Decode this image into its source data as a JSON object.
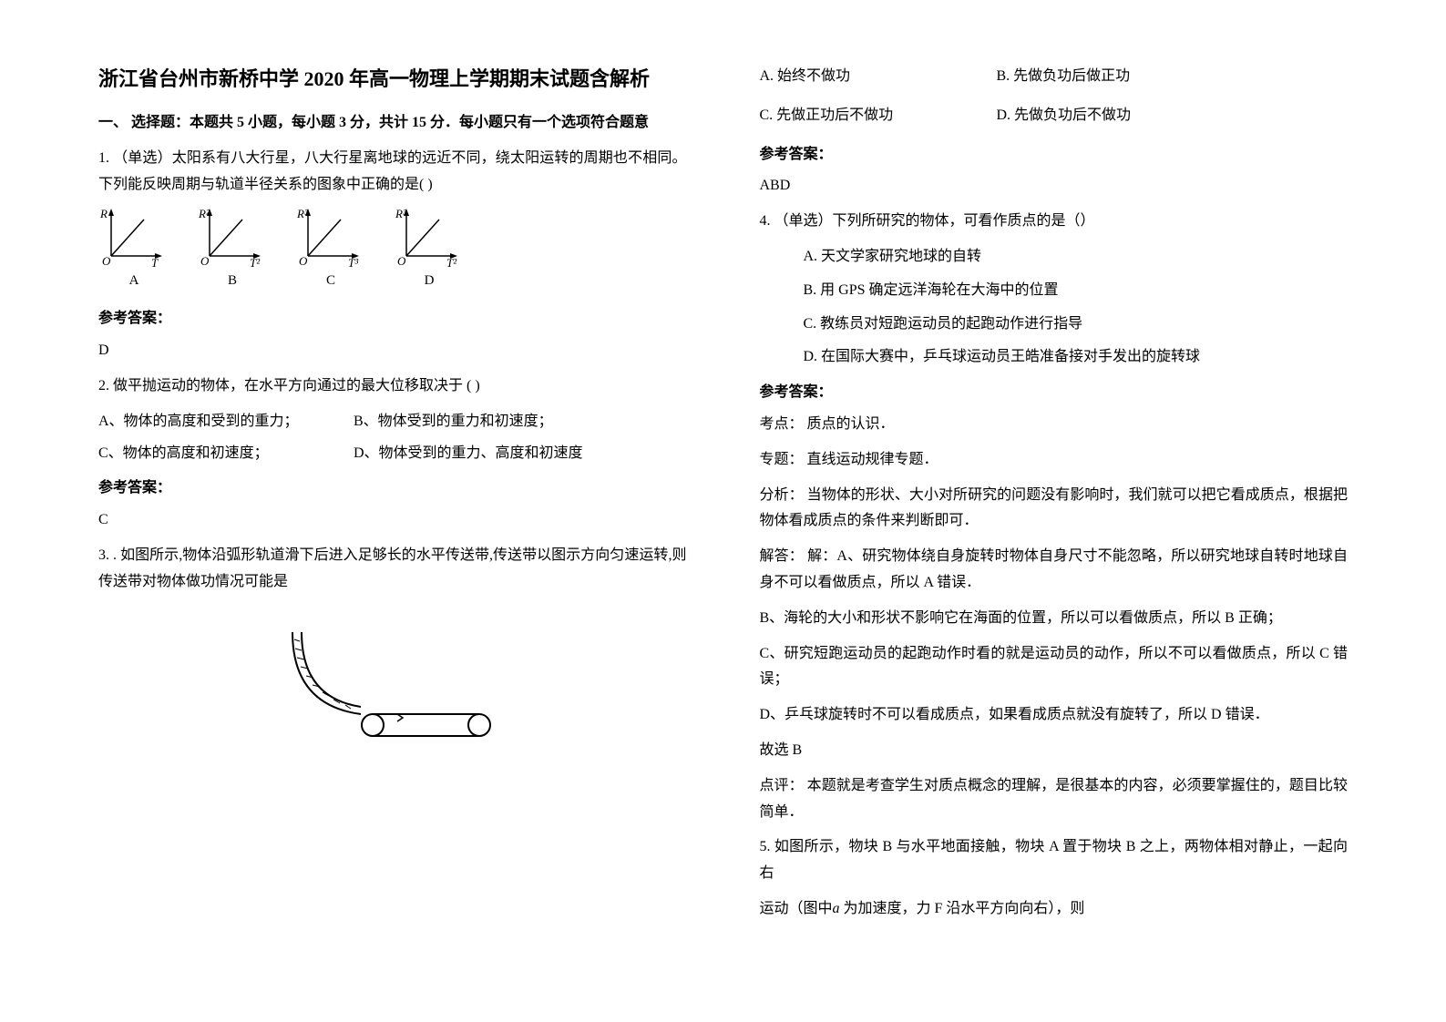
{
  "title": "浙江省台州市新桥中学 2020 年高一物理上学期期末试题含解析",
  "section_heading": "一、 选择题：本题共 5 小题，每小题 3 分，共计 15 分．每小题只有一个选项符合题意",
  "q1": {
    "stem": "1. （单选）太阳系有八大行星，八大行星离地球的远近不同，绕太阳运转的周期也不相同。下列能反映周期与轨道半径关系的图象中正确的是(     )",
    "axes": [
      {
        "y": "R",
        "x": "T",
        "label": "A"
      },
      {
        "y": "R²",
        "x": "T²",
        "label": "B"
      },
      {
        "y": "R³",
        "x": "T³",
        "label": "C"
      },
      {
        "y": "R³",
        "x": "T²",
        "label": "D"
      }
    ],
    "ans_label": "参考答案：",
    "ans": "D"
  },
  "q2": {
    "stem": "2. 做平抛运动的物体，在水平方向通过的最大位移取决于 (    )",
    "optA": "A、物体的高度和受到的重力；",
    "optB": "B、物体受到的重力和初速度；",
    "optC": "C、物体的高度和初速度；",
    "optD": "D、物体受到的重力、高度和初速度",
    "ans_label": "参考答案：",
    "ans": "C"
  },
  "q3": {
    "stem": "3. . 如图所示,物体沿弧形轨道滑下后进入足够长的水平传送带,传送带以图示方向匀速运转,则传送带对物体做功情况可能是",
    "optA": "A. 始终不做功",
    "optB": "B. 先做负功后做正功",
    "optC": "C. 先做正功后不做功",
    "optD": "D. 先做负功后不做功",
    "ans_label": "参考答案：",
    "ans": "ABD",
    "svg": {
      "stroke": "#000000",
      "fill": "#ffffff",
      "hatch": "#000000"
    }
  },
  "q4": {
    "stem": "4. （单选）下列所研究的物体，可看作质点的是（）",
    "optA": "A. 天文学家研究地球的自转",
    "optB": "B. 用 GPS 确定远洋海轮在大海中的位置",
    "optC": "C. 教练员对短跑运动员的起跑动作进行指导",
    "optD": "D. 在国际大赛中，乒乓球运动员王皓准备接对手发出的旋转球",
    "ans_label": "参考答案：",
    "kd_label": "考点：",
    "kd": " 质点的认识．",
    "zt_label": "专题：",
    "zt": " 直线运动规律专题．",
    "fx_label": "分析：",
    "fx": " 当物体的形状、大小对所研究的问题没有影响时，我们就可以把它看成质点，根据把物体看成质点的条件来判断即可．",
    "jd_label": "解答：",
    "jd_a": " 解：A、研究物体绕自身旋转时物体自身尺寸不能忽略，所以研究地球自转时地球自身不可以看做质点，所以 A 错误．",
    "jd_b": "B、海轮的大小和形状不影响它在海面的位置，所以可以看做质点，所以 B 正确；",
    "jd_c": "C、研究短跑运动员的起跑动作时看的就是运动员的动作，所以不可以看做质点，所以 C 错误；",
    "jd_d": "D、乒乓球旋转时不可以看成质点，如果看成质点就没有旋转了，所以 D 错误．",
    "final": "故选 B",
    "dp_label": "点评：",
    "dp": " 本题就是考查学生对质点概念的理解，是很基本的内容，必须要掌握住的，题目比较简单．"
  },
  "q5": {
    "stem_a": "5. 如图所示，物块 B 与水平地面接触，物块 A 置于物块 B 之上，两物体相对静止，一起向右",
    "stem_b_prefix": "运动（图中",
    "stem_b_mid": " 为加速度，力 F 沿水平方向向右），则",
    "italic_a": "a"
  }
}
